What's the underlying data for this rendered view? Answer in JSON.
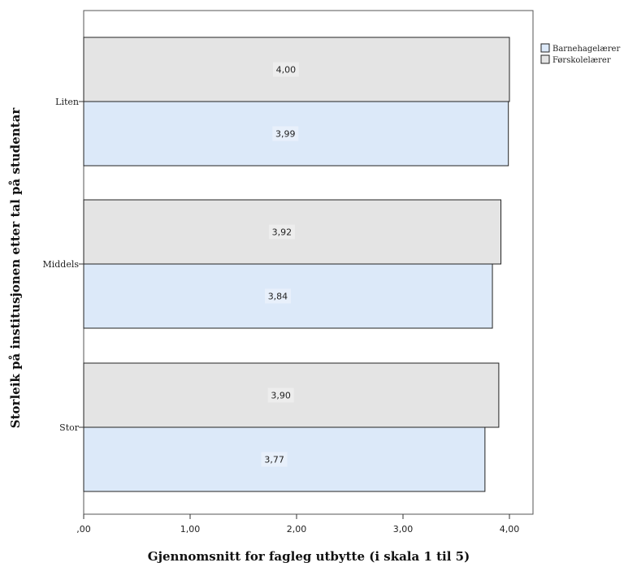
{
  "chart_data": {
    "type": "bar",
    "orientation": "horizontal",
    "categories": [
      "Liten",
      "Middels",
      "Stor"
    ],
    "series": [
      {
        "name": "Barnehagelærer",
        "values": [
          3.99,
          3.84,
          3.77
        ],
        "color": "#dce9f9"
      },
      {
        "name": "Førskolelærer",
        "values": [
          4.0,
          3.92,
          3.9
        ],
        "color": "#e4e4e4"
      }
    ],
    "data_labels": [
      [
        "3,99",
        "3,84",
        "3,77"
      ],
      [
        "4,00",
        "3,92",
        "3,90"
      ]
    ],
    "xlabel": "Gjennomsnitt for fagleg utbytte (i skala 1 til 5)",
    "ylabel": "Storleik på institusjonen etter tal på studentar",
    "xlim": [
      0,
      4.2
    ],
    "xticks": [
      0,
      1,
      2,
      3,
      4
    ],
    "xtick_labels": [
      ",00",
      "1,00",
      "2,00",
      "3,00",
      "4,00"
    ],
    "legend_position": "right",
    "grid": false
  }
}
